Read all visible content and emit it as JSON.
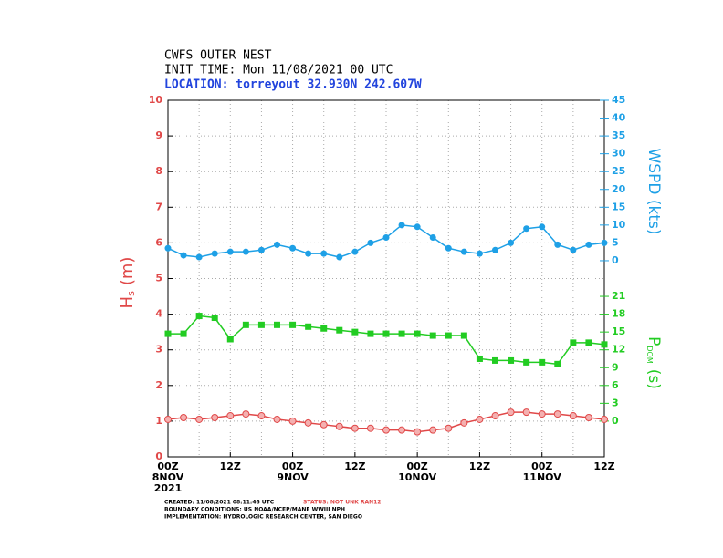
{
  "chart_data": {
    "type": "line",
    "title": "CWFS OUTER NEST",
    "subtitle": "INIT TIME: Mon 11/08/2021 00 UTC",
    "location": "LOCATION: torreyout 32.930N 242.607W",
    "y_label": "H",
    "y_label_sub": "s",
    "y_label_unit": "(m)",
    "y2_label": "WSPD (kts)",
    "y3_label": "P",
    "y3_label_sub": "DOM",
    "y3_label_unit": "(s)",
    "x": [
      0,
      3,
      6,
      9,
      12,
      15,
      18,
      21,
      24,
      27,
      30,
      33,
      36,
      39,
      42,
      45,
      48,
      51,
      54,
      57,
      60,
      63,
      66,
      69,
      72,
      75,
      78,
      81,
      84
    ],
    "xlim": [
      0,
      84
    ],
    "xticks": [
      {
        "value": 0,
        "label": "00Z"
      },
      {
        "value": 12,
        "label": "12Z"
      },
      {
        "value": 24,
        "label": "00Z"
      },
      {
        "value": 36,
        "label": "12Z"
      },
      {
        "value": 48,
        "label": "00Z"
      },
      {
        "value": 60,
        "label": "12Z"
      },
      {
        "value": 72,
        "label": "00Z"
      },
      {
        "value": 84,
        "label": "12Z"
      }
    ],
    "date_labels": [
      {
        "value": 0,
        "label": "8NOV"
      },
      {
        "value": 24,
        "label": "9NOV"
      },
      {
        "value": 48,
        "label": "10NOV"
      },
      {
        "value": 72,
        "label": "11NOV"
      }
    ],
    "year": "2021",
    "ylim": [
      0,
      10
    ],
    "yticks": [
      0,
      1,
      2,
      3,
      4,
      5,
      6,
      7,
      8,
      9,
      10
    ],
    "y2lim": [
      -55,
      45
    ],
    "y2ticks": [
      0,
      5,
      10,
      15,
      20,
      25,
      30,
      35,
      40,
      45
    ],
    "y3lim": [
      -6,
      54
    ],
    "y3ticks": [
      0,
      3,
      6,
      9,
      12,
      15,
      18,
      21
    ],
    "grid": true,
    "series": [
      {
        "name": "Hs",
        "color": "#e04848",
        "axis": "y",
        "marker": "circle",
        "values": [
          1.05,
          1.1,
          1.05,
          1.1,
          1.15,
          1.2,
          1.15,
          1.05,
          1.0,
          0.95,
          0.9,
          0.85,
          0.8,
          0.8,
          0.75,
          0.75,
          0.7,
          0.75,
          0.8,
          0.95,
          1.05,
          1.15,
          1.25,
          1.25,
          1.2,
          1.2,
          1.15,
          1.1,
          1.05
        ]
      },
      {
        "name": "WSPD",
        "color": "#1ea0e6",
        "axis": "y2",
        "marker": "dot",
        "values": [
          3.5,
          1.5,
          1,
          2,
          2.5,
          2.5,
          3,
          4.5,
          3.5,
          2,
          2,
          1,
          2.5,
          5,
          6.5,
          10,
          9.5,
          6.5,
          3.5,
          2.5,
          2,
          3,
          5,
          9,
          9.5,
          4.5,
          3,
          4.5,
          5
        ]
      },
      {
        "name": "Pdom",
        "color": "#22cc22",
        "axis": "y3",
        "marker": "square",
        "values": [
          14.7,
          14.7,
          17.7,
          17.4,
          13.8,
          16.2,
          16.2,
          16.2,
          16.2,
          15.9,
          15.6,
          15.3,
          15,
          14.7,
          14.7,
          14.7,
          14.7,
          14.4,
          14.4,
          14.4,
          10.5,
          10.2,
          10.2,
          9.9,
          9.9,
          9.6,
          13.2,
          13.2,
          12.9
        ]
      }
    ],
    "footer": [
      "CREATED: 11/08/2021 08:11:46 UTC",
      "BOUNDARY CONDITIONS: US NOAA/NCEP/MANE WWIII NPH",
      "IMPLEMENTATION: HYDROLOGIC RESEARCH CENTER, SAN DIEGO"
    ],
    "status": "STATUS: NOT UNK RAN12"
  }
}
